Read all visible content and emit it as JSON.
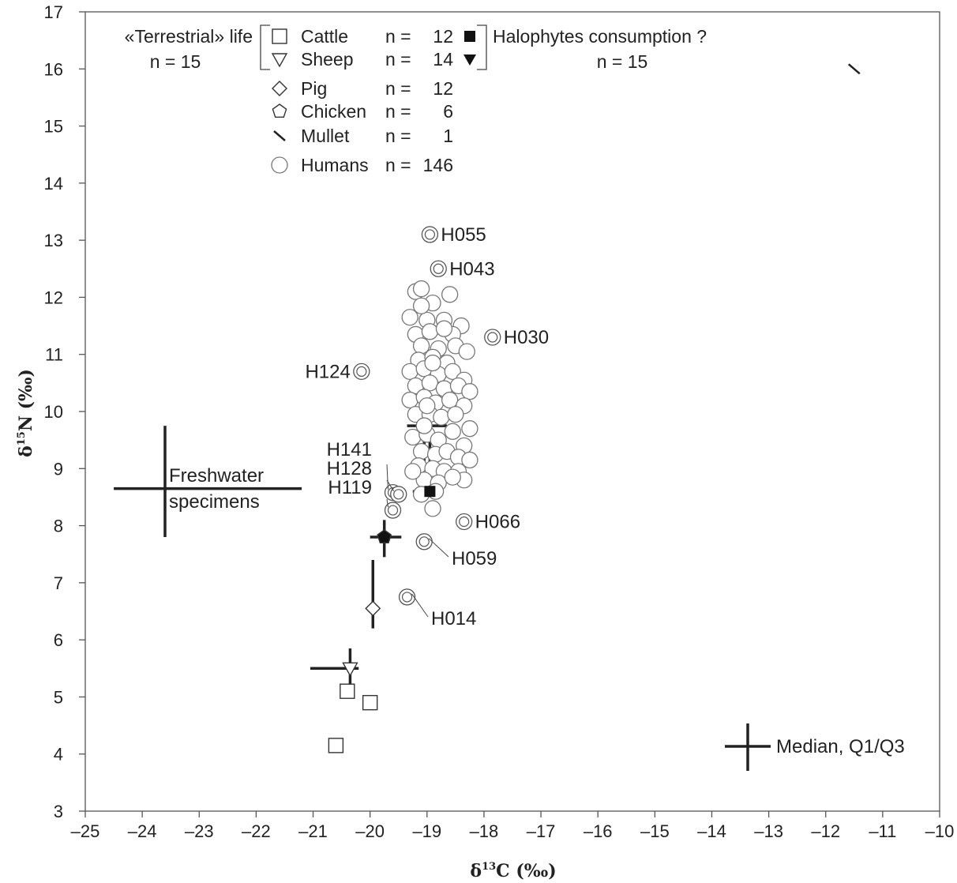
{
  "chart_data": {
    "type": "scatter",
    "xlabel": "δ13C (‰)",
    "ylabel": "δ15N (‰)",
    "xlim": [
      -25,
      -10
    ],
    "ylim": [
      3,
      17
    ],
    "x_ticks": [
      -25,
      -24,
      -23,
      -22,
      -21,
      -20,
      -19,
      -18,
      -17,
      -16,
      -15,
      -14,
      -13,
      -12,
      -11,
      -10
    ],
    "y_ticks": [
      3,
      4,
      5,
      6,
      7,
      8,
      9,
      10,
      11,
      12,
      13,
      14,
      15,
      16,
      17
    ],
    "grid": false,
    "legend": {
      "placement": "top-left",
      "terrestrial_label": "«Terrestrial» life",
      "terrestrial_n": "n = 15",
      "halophytes_label": "Halophytes consumption ?",
      "halophytes_n": "n = 15",
      "entries": [
        {
          "name": "Cattle",
          "marker": "square-open",
          "n": "n =",
          "count": "12",
          "alt_marker": "square-filled"
        },
        {
          "name": "Sheep",
          "marker": "triangle-down-open",
          "n": "n =",
          "count": "14",
          "alt_marker": "triangle-down-filled"
        },
        {
          "name": "Pig",
          "marker": "diamond-open",
          "n": "n =",
          "count": "12"
        },
        {
          "name": "Chicken",
          "marker": "pentagon-open",
          "n": "n =",
          "count": "6"
        },
        {
          "name": "Mullet",
          "marker": "dash",
          "n": "n =",
          "count": "1"
        },
        {
          "name": "Humans",
          "marker": "circle-open",
          "n": "n =",
          "count": "146"
        }
      ]
    },
    "series": [
      {
        "name": "Cattle",
        "marker": "square-open",
        "points": [
          [
            -20.6,
            4.15
          ],
          [
            -20.0,
            4.9
          ],
          [
            -20.4,
            5.1
          ]
        ]
      },
      {
        "name": "Mullet",
        "marker": "dash",
        "points": [
          [
            -11.5,
            16.0
          ]
        ]
      },
      {
        "name": "Humans",
        "marker": "circle-open",
        "points": [
          [
            -19.2,
            12.1
          ],
          [
            -19.1,
            12.15
          ],
          [
            -18.9,
            11.9
          ],
          [
            -18.6,
            12.05
          ],
          [
            -19.3,
            11.65
          ],
          [
            -19.0,
            11.6
          ],
          [
            -18.7,
            11.6
          ],
          [
            -18.4,
            11.5
          ],
          [
            -19.2,
            11.35
          ],
          [
            -18.95,
            11.4
          ],
          [
            -18.55,
            11.35
          ],
          [
            -19.1,
            11.15
          ],
          [
            -18.8,
            11.1
          ],
          [
            -18.5,
            11.15
          ],
          [
            -18.3,
            11.05
          ],
          [
            -19.15,
            10.9
          ],
          [
            -18.9,
            10.95
          ],
          [
            -18.65,
            10.85
          ],
          [
            -19.3,
            10.7
          ],
          [
            -19.05,
            10.75
          ],
          [
            -18.8,
            10.65
          ],
          [
            -18.55,
            10.7
          ],
          [
            -18.35,
            10.55
          ],
          [
            -19.2,
            10.45
          ],
          [
            -18.95,
            10.5
          ],
          [
            -18.7,
            10.4
          ],
          [
            -18.45,
            10.45
          ],
          [
            -18.25,
            10.35
          ],
          [
            -19.3,
            10.2
          ],
          [
            -19.05,
            10.25
          ],
          [
            -18.85,
            10.15
          ],
          [
            -18.6,
            10.2
          ],
          [
            -18.35,
            10.1
          ],
          [
            -19.2,
            9.95
          ],
          [
            -18.95,
            9.95
          ],
          [
            -18.75,
            9.9
          ],
          [
            -18.5,
            9.95
          ],
          [
            -18.25,
            9.7
          ],
          [
            -19.25,
            9.55
          ],
          [
            -19.0,
            9.6
          ],
          [
            -18.8,
            9.5
          ],
          [
            -18.55,
            9.65
          ],
          [
            -18.35,
            9.4
          ],
          [
            -19.1,
            9.3
          ],
          [
            -18.85,
            9.25
          ],
          [
            -18.65,
            9.3
          ],
          [
            -18.45,
            9.2
          ],
          [
            -18.25,
            9.15
          ],
          [
            -19.15,
            9.05
          ],
          [
            -18.9,
            9.0
          ],
          [
            -18.7,
            8.95
          ],
          [
            -18.45,
            8.95
          ],
          [
            -18.35,
            8.8
          ],
          [
            -19.05,
            8.8
          ],
          [
            -18.8,
            8.75
          ],
          [
            -18.55,
            8.85
          ],
          [
            -19.1,
            8.55
          ],
          [
            -18.85,
            8.6
          ],
          [
            -18.9,
            8.3
          ],
          [
            -19.25,
            8.95
          ],
          [
            -19.0,
            10.1
          ],
          [
            -18.9,
            10.85
          ],
          [
            -18.7,
            11.45
          ],
          [
            -19.1,
            11.85
          ]
        ]
      },
      {
        "name": "Humans (labelled)",
        "marker": "circle-double",
        "points": [
          {
            "id": "H055",
            "x": -18.95,
            "y": 13.1
          },
          {
            "id": "H043",
            "x": -18.8,
            "y": 12.5
          },
          {
            "id": "H030",
            "x": -17.85,
            "y": 11.3
          },
          {
            "id": "H124",
            "x": -20.15,
            "y": 10.7
          },
          {
            "id": "H141",
            "x": -19.6,
            "y": 8.58
          },
          {
            "id": "H128",
            "x": -19.5,
            "y": 8.55
          },
          {
            "id": "H119",
            "x": -19.6,
            "y": 8.27
          },
          {
            "id": "H066",
            "x": -18.35,
            "y": 8.07
          },
          {
            "id": "H059",
            "x": -19.05,
            "y": 7.72
          },
          {
            "id": "H014",
            "x": -19.35,
            "y": 6.75
          }
        ]
      }
    ],
    "medians": [
      {
        "name": "Sheep",
        "marker": "triangle-down-open",
        "x": -20.35,
        "y": 5.5,
        "xq": [
          -21.05,
          -20.2
        ],
        "yq": [
          5.0,
          5.85
        ]
      },
      {
        "name": "Pig",
        "marker": "diamond-open",
        "x": -19.95,
        "y": 6.55,
        "xq": [
          -19.95,
          -19.95
        ],
        "yq": [
          6.2,
          7.4
        ]
      },
      {
        "name": "Chicken",
        "marker": "pentagon-filled",
        "x": -19.75,
        "y": 7.8,
        "xq": [
          -20.0,
          -19.45
        ],
        "yq": [
          7.45,
          8.1
        ]
      },
      {
        "name": "Cattle (halophytes)",
        "marker": "square-filled",
        "x": -18.95,
        "y": 8.6,
        "xq": [
          -19.25,
          -18.9
        ],
        "yq": [
          8.55,
          9.55
        ]
      },
      {
        "name": "Humans",
        "marker": "circle-open",
        "x": -19.05,
        "y": 9.75,
        "xq": [
          -19.35,
          -18.65
        ],
        "yq": [
          9.05,
          10.25
        ]
      },
      {
        "name": "Freshwater",
        "marker": "none",
        "x": -23.6,
        "y": 8.65,
        "xq": [
          -24.5,
          -21.2
        ],
        "yq": [
          7.8,
          9.75
        ]
      }
    ],
    "annotations": {
      "freshwater_line1": "Freshwater",
      "freshwater_line2": "specimens",
      "median_key": "Median, Q1/Q3"
    }
  }
}
